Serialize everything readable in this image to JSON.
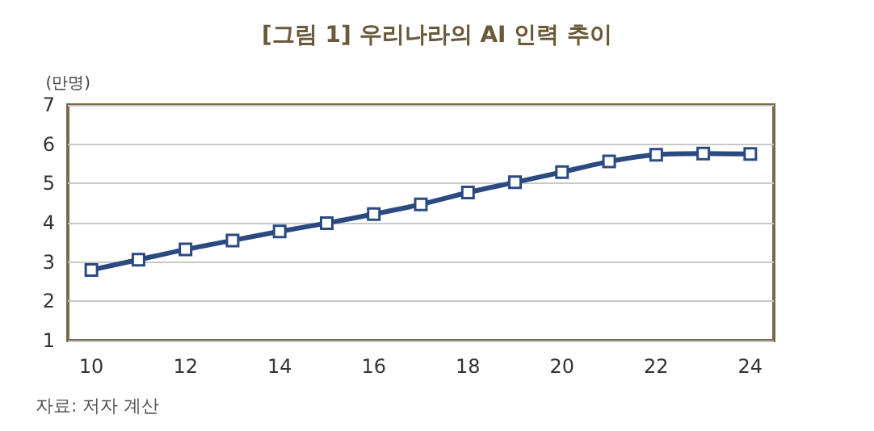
{
  "chart_data": {
    "type": "line",
    "title": "[그림 1] 우리나라의 AI 인력 추이",
    "ylabel": "(만명)",
    "x": [
      10,
      11,
      12,
      13,
      14,
      15,
      16,
      17,
      18,
      19,
      20,
      21,
      22,
      23,
      24
    ],
    "series": [
      {
        "color": "#2b4a82",
        "values": [
          2.8,
          3.06,
          3.32,
          3.55,
          3.78,
          3.99,
          4.22,
          4.47,
          4.77,
          5.03,
          5.29,
          5.56,
          5.73,
          5.76,
          5.75
        ]
      }
    ],
    "xlim": [
      9.5,
      24.5
    ],
    "xticks": [
      10,
      12,
      14,
      16,
      18,
      20,
      22,
      24
    ],
    "ylim": [
      1,
      7
    ],
    "yticks": [
      1,
      2,
      3,
      4,
      5,
      6,
      7
    ],
    "grid": "y",
    "marker": "square",
    "line_style": "solid",
    "annotations": [
      "자료: 저자 계산"
    ]
  }
}
